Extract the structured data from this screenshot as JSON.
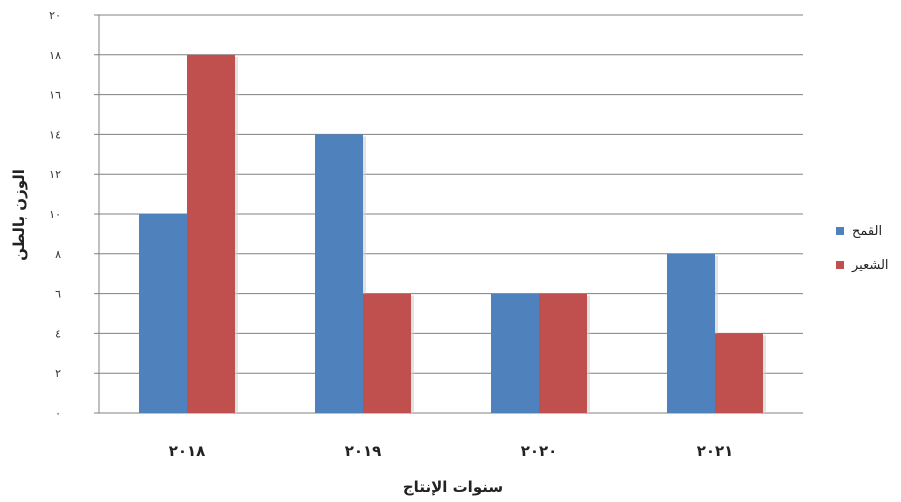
{
  "chart_data": {
    "type": "bar",
    "categories": [
      "٢٠١٨",
      "٢٠١٩",
      "٢٠٢٠",
      "٢٠٢١"
    ],
    "series": [
      {
        "name": "القمح",
        "values": [
          10,
          14,
          6,
          8
        ],
        "color": "#4F81BD"
      },
      {
        "name": "الشعير",
        "values": [
          18,
          6,
          6,
          4
        ],
        "color": "#C0504D"
      }
    ],
    "yticks": [
      0,
      2,
      4,
      6,
      8,
      10,
      12,
      14,
      16,
      18,
      20
    ],
    "ytick_labels": [
      "٠",
      "٢",
      "٤",
      "٦",
      "٨",
      "١٠",
      "١٢",
      "١٤",
      "١٦",
      "١٨",
      "٢٠"
    ],
    "ylim": [
      0,
      20
    ],
    "xlabel": "سنوات الإنتاج",
    "ylabel": "الوزن بالطن",
    "grid": true,
    "legend_position": "right"
  }
}
